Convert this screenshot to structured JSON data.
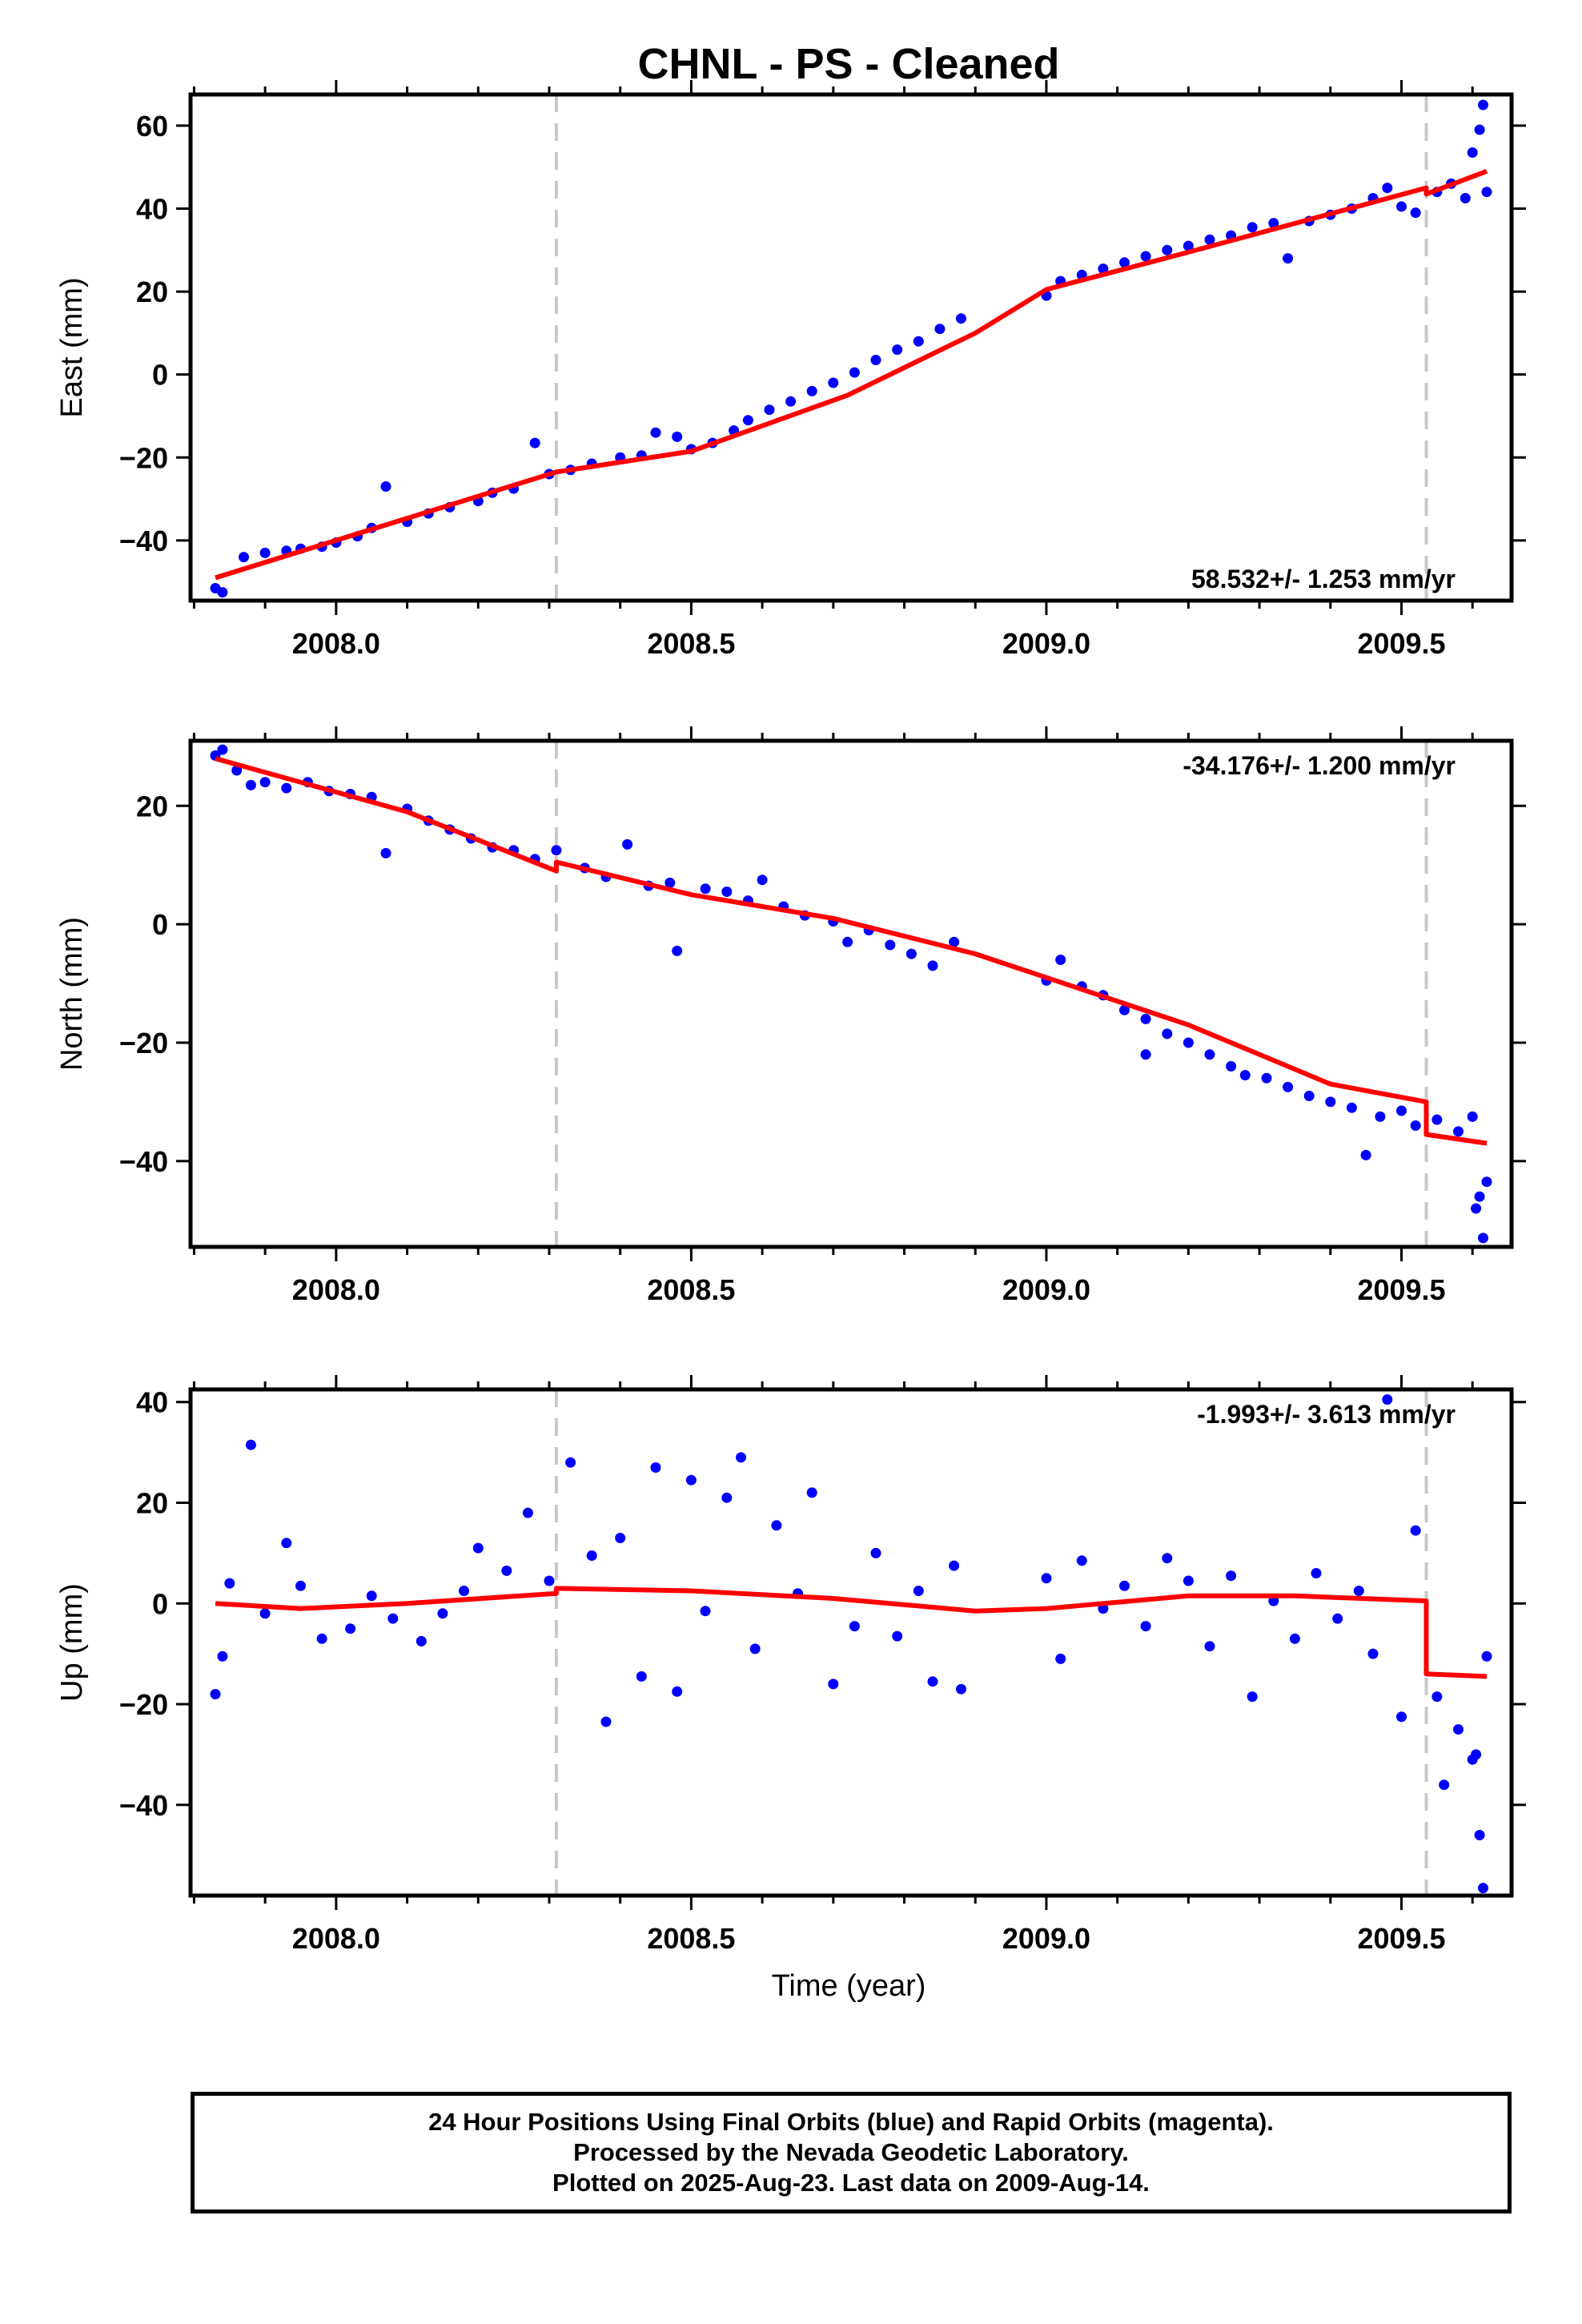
{
  "title": "CHNL  - PS - Cleaned",
  "x_axis_label": "Time (year)",
  "footer": {
    "lines": [
      "24 Hour Positions Using Final Orbits (blue) and Rapid Orbits (magenta).",
      "Processed by the Nevada Geodetic Laboratory.",
      "Plotted on 2025-Aug-23. Last data on 2009-Aug-14."
    ]
  },
  "colors": {
    "points": "#0000ff",
    "model": "#ff0000",
    "events": "#c8c8c8"
  },
  "chart_data": [
    {
      "type": "scatter",
      "ylabel": "East (mm)",
      "rate_label": "58.532+/- 1.253 mm/yr",
      "xlim": [
        2007.795,
        2009.655
      ],
      "ylim": [
        -54.5,
        67.5
      ],
      "x_ticks": [
        2008.0,
        2008.5,
        2009.0,
        2009.5
      ],
      "x_tick_labels": [
        "2008.0",
        "2008.5",
        "2009.0",
        "2009.5"
      ],
      "y_ticks": [
        -40,
        -20,
        0,
        20,
        40,
        60
      ],
      "y_tick_labels": [
        "−40",
        "−20",
        "0",
        "20",
        "40",
        "60"
      ],
      "event_lines": [
        2008.31,
        2009.535
      ],
      "model_line": [
        [
          2007.83,
          -49.0
        ],
        [
          2008.31,
          -23.5
        ],
        [
          2008.5,
          -18.5
        ],
        [
          2008.72,
          -5.0
        ],
        [
          2008.9,
          10.0
        ],
        [
          2009.0,
          20.5
        ],
        [
          2009.2,
          29.5
        ],
        [
          2009.535,
          45.0
        ],
        [
          2009.535,
          43.5
        ],
        [
          2009.62,
          49.0
        ]
      ],
      "series": [
        {
          "points": [
            [
              2007.83,
              -51.5
            ],
            [
              2007.84,
              -52.5
            ],
            [
              2007.87,
              -44.0
            ],
            [
              2007.9,
              -43.0
            ],
            [
              2007.93,
              -42.5
            ],
            [
              2007.95,
              -42.0
            ],
            [
              2007.98,
              -41.5
            ],
            [
              2008.0,
              -40.5
            ],
            [
              2008.03,
              -39.0
            ],
            [
              2008.05,
              -37.0
            ],
            [
              2008.07,
              -27.0
            ],
            [
              2008.1,
              -35.5
            ],
            [
              2008.13,
              -33.5
            ],
            [
              2008.16,
              -32.0
            ],
            [
              2008.2,
              -30.5
            ],
            [
              2008.22,
              -28.5
            ],
            [
              2008.25,
              -27.5
            ],
            [
              2008.28,
              -16.5
            ],
            [
              2008.3,
              -24.0
            ],
            [
              2008.33,
              -23.0
            ],
            [
              2008.36,
              -21.5
            ],
            [
              2008.4,
              -20.0
            ],
            [
              2008.43,
              -19.5
            ],
            [
              2008.45,
              -14.0
            ],
            [
              2008.48,
              -15.0
            ],
            [
              2008.5,
              -18.0
            ],
            [
              2008.53,
              -16.5
            ],
            [
              2008.56,
              -13.5
            ],
            [
              2008.58,
              -11.0
            ],
            [
              2008.61,
              -8.5
            ],
            [
              2008.64,
              -6.5
            ],
            [
              2008.67,
              -4.0
            ],
            [
              2008.7,
              -2.0
            ],
            [
              2008.73,
              0.5
            ],
            [
              2008.76,
              3.5
            ],
            [
              2008.79,
              6.0
            ],
            [
              2008.82,
              8.0
            ],
            [
              2008.85,
              11.0
            ],
            [
              2008.88,
              13.5
            ],
            [
              2009.0,
              19.0
            ],
            [
              2009.02,
              22.5
            ],
            [
              2009.05,
              24.0
            ],
            [
              2009.08,
              25.5
            ],
            [
              2009.11,
              27.0
            ],
            [
              2009.14,
              28.5
            ],
            [
              2009.17,
              30.0
            ],
            [
              2009.2,
              31.0
            ],
            [
              2009.23,
              32.5
            ],
            [
              2009.26,
              33.5
            ],
            [
              2009.29,
              35.5
            ],
            [
              2009.32,
              36.5
            ],
            [
              2009.34,
              28.0
            ],
            [
              2009.37,
              37.0
            ],
            [
              2009.4,
              38.5
            ],
            [
              2009.43,
              40.0
            ],
            [
              2009.46,
              42.5
            ],
            [
              2009.48,
              45.0
            ],
            [
              2009.5,
              40.5
            ],
            [
              2009.52,
              39.0
            ],
            [
              2009.55,
              44.0
            ],
            [
              2009.57,
              46.0
            ],
            [
              2009.59,
              42.5
            ],
            [
              2009.6,
              53.5
            ],
            [
              2009.61,
              59.0
            ],
            [
              2009.615,
              65.0
            ],
            [
              2009.62,
              44.0
            ]
          ]
        }
      ]
    },
    {
      "type": "scatter",
      "ylabel": "North (mm)",
      "rate_label": "-34.176+/- 1.200 mm/yr",
      "xlim": [
        2007.795,
        2009.655
      ],
      "ylim": [
        -54.5,
        31.0
      ],
      "x_ticks": [
        2008.0,
        2008.5,
        2009.0,
        2009.5
      ],
      "x_tick_labels": [
        "2008.0",
        "2008.5",
        "2009.0",
        "2009.5"
      ],
      "y_ticks": [
        -40,
        -20,
        0,
        20
      ],
      "y_tick_labels": [
        "−40",
        "−20",
        "0",
        "20"
      ],
      "event_lines": [
        2008.31,
        2009.535
      ],
      "model_line": [
        [
          2007.83,
          28.0
        ],
        [
          2008.1,
          19.0
        ],
        [
          2008.31,
          9.0
        ],
        [
          2008.31,
          10.5
        ],
        [
          2008.5,
          5.0
        ],
        [
          2008.7,
          1.0
        ],
        [
          2008.9,
          -5.0
        ],
        [
          2009.0,
          -9.0
        ],
        [
          2009.2,
          -17.0
        ],
        [
          2009.4,
          -27.0
        ],
        [
          2009.535,
          -30.0
        ],
        [
          2009.535,
          -35.5
        ],
        [
          2009.62,
          -37.0
        ]
      ],
      "series": [
        {
          "points": [
            [
              2007.83,
              28.5
            ],
            [
              2007.84,
              29.5
            ],
            [
              2007.86,
              26.0
            ],
            [
              2007.88,
              23.5
            ],
            [
              2007.9,
              24.0
            ],
            [
              2007.93,
              23.0
            ],
            [
              2007.96,
              24.0
            ],
            [
              2007.99,
              22.5
            ],
            [
              2008.02,
              22.0
            ],
            [
              2008.05,
              21.5
            ],
            [
              2008.07,
              12.0
            ],
            [
              2008.1,
              19.5
            ],
            [
              2008.13,
              17.5
            ],
            [
              2008.16,
              16.0
            ],
            [
              2008.19,
              14.5
            ],
            [
              2008.22,
              13.0
            ],
            [
              2008.25,
              12.5
            ],
            [
              2008.28,
              11.0
            ],
            [
              2008.31,
              12.5
            ],
            [
              2008.35,
              9.5
            ],
            [
              2008.38,
              8.0
            ],
            [
              2008.41,
              13.5
            ],
            [
              2008.44,
              6.5
            ],
            [
              2008.47,
              7.0
            ],
            [
              2008.48,
              -4.5
            ],
            [
              2008.52,
              6.0
            ],
            [
              2008.55,
              5.5
            ],
            [
              2008.58,
              4.0
            ],
            [
              2008.6,
              7.5
            ],
            [
              2008.63,
              3.0
            ],
            [
              2008.66,
              1.5
            ],
            [
              2008.7,
              0.5
            ],
            [
              2008.72,
              -3.0
            ],
            [
              2008.75,
              -1.0
            ],
            [
              2008.78,
              -3.5
            ],
            [
              2008.81,
              -5.0
            ],
            [
              2008.84,
              -7.0
            ],
            [
              2008.87,
              -3.0
            ],
            [
              2009.0,
              -9.5
            ],
            [
              2009.02,
              -6.0
            ],
            [
              2009.05,
              -10.5
            ],
            [
              2009.08,
              -12.0
            ],
            [
              2009.11,
              -14.5
            ],
            [
              2009.14,
              -16.0
            ],
            [
              2009.14,
              -22.0
            ],
            [
              2009.17,
              -18.5
            ],
            [
              2009.2,
              -20.0
            ],
            [
              2009.23,
              -22.0
            ],
            [
              2009.26,
              -24.0
            ],
            [
              2009.28,
              -25.5
            ],
            [
              2009.31,
              -26.0
            ],
            [
              2009.34,
              -27.5
            ],
            [
              2009.37,
              -29.0
            ],
            [
              2009.4,
              -30.0
            ],
            [
              2009.43,
              -31.0
            ],
            [
              2009.45,
              -39.0
            ],
            [
              2009.47,
              -32.5
            ],
            [
              2009.5,
              -31.5
            ],
            [
              2009.52,
              -34.0
            ],
            [
              2009.55,
              -33.0
            ],
            [
              2009.58,
              -35.0
            ],
            [
              2009.6,
              -32.5
            ],
            [
              2009.605,
              -48.0
            ],
            [
              2009.61,
              -46.0
            ],
            [
              2009.615,
              -53.0
            ],
            [
              2009.62,
              -43.5
            ]
          ]
        }
      ]
    },
    {
      "type": "scatter",
      "ylabel": "Up (mm)",
      "rate_label": "-1.993+/- 3.613 mm/yr",
      "xlim": [
        2007.795,
        2009.655
      ],
      "ylim": [
        -58.0,
        42.5
      ],
      "x_ticks": [
        2008.0,
        2008.5,
        2009.0,
        2009.5
      ],
      "x_tick_labels": [
        "2008.0",
        "2008.5",
        "2009.0",
        "2009.5"
      ],
      "y_ticks": [
        -40,
        -20,
        0,
        20,
        40
      ],
      "y_tick_labels": [
        "−40",
        "−20",
        "0",
        "20",
        "40"
      ],
      "event_lines": [
        2008.31,
        2009.535
      ],
      "model_line": [
        [
          2007.83,
          0.0
        ],
        [
          2007.95,
          -1.0
        ],
        [
          2008.1,
          0.0
        ],
        [
          2008.31,
          2.0
        ],
        [
          2008.31,
          3.0
        ],
        [
          2008.5,
          2.5
        ],
        [
          2008.7,
          1.0
        ],
        [
          2008.9,
          -1.5
        ],
        [
          2009.0,
          -1.0
        ],
        [
          2009.2,
          1.5
        ],
        [
          2009.35,
          1.5
        ],
        [
          2009.535,
          0.5
        ],
        [
          2009.535,
          -14.0
        ],
        [
          2009.62,
          -14.5
        ]
      ],
      "series": [
        {
          "points": [
            [
              2007.83,
              -18.0
            ],
            [
              2007.84,
              -10.5
            ],
            [
              2007.85,
              4.0
            ],
            [
              2007.88,
              31.5
            ],
            [
              2007.9,
              -2.0
            ],
            [
              2007.93,
              12.0
            ],
            [
              2007.95,
              3.5
            ],
            [
              2007.98,
              -7.0
            ],
            [
              2008.02,
              -5.0
            ],
            [
              2008.05,
              1.5
            ],
            [
              2008.08,
              -3.0
            ],
            [
              2008.12,
              -7.5
            ],
            [
              2008.15,
              -2.0
            ],
            [
              2008.18,
              2.5
            ],
            [
              2008.2,
              11.0
            ],
            [
              2008.24,
              6.5
            ],
            [
              2008.27,
              18.0
            ],
            [
              2008.3,
              4.5
            ],
            [
              2008.33,
              28.0
            ],
            [
              2008.36,
              9.5
            ],
            [
              2008.38,
              -23.5
            ],
            [
              2008.4,
              13.0
            ],
            [
              2008.43,
              -14.5
            ],
            [
              2008.45,
              27.0
            ],
            [
              2008.48,
              -17.5
            ],
            [
              2008.5,
              24.5
            ],
            [
              2008.52,
              -1.5
            ],
            [
              2008.55,
              21.0
            ],
            [
              2008.57,
              29.0
            ],
            [
              2008.59,
              -9.0
            ],
            [
              2008.62,
              15.5
            ],
            [
              2008.65,
              2.0
            ],
            [
              2008.67,
              22.0
            ],
            [
              2008.7,
              -16.0
            ],
            [
              2008.73,
              -4.5
            ],
            [
              2008.76,
              10.0
            ],
            [
              2008.79,
              -6.5
            ],
            [
              2008.82,
              2.5
            ],
            [
              2008.84,
              -15.5
            ],
            [
              2008.87,
              7.5
            ],
            [
              2008.88,
              -17.0
            ],
            [
              2009.0,
              5.0
            ],
            [
              2009.02,
              -11.0
            ],
            [
              2009.05,
              8.5
            ],
            [
              2009.08,
              -1.0
            ],
            [
              2009.11,
              3.5
            ],
            [
              2009.14,
              -4.5
            ],
            [
              2009.17,
              9.0
            ],
            [
              2009.2,
              4.5
            ],
            [
              2009.23,
              -8.5
            ],
            [
              2009.26,
              5.5
            ],
            [
              2009.29,
              -18.5
            ],
            [
              2009.32,
              0.5
            ],
            [
              2009.35,
              -7.0
            ],
            [
              2009.38,
              6.0
            ],
            [
              2009.41,
              -3.0
            ],
            [
              2009.44,
              2.5
            ],
            [
              2009.46,
              -10.0
            ],
            [
              2009.48,
              40.5
            ],
            [
              2009.5,
              -22.5
            ],
            [
              2009.52,
              14.5
            ],
            [
              2009.55,
              -18.5
            ],
            [
              2009.56,
              -36.0
            ],
            [
              2009.58,
              -25.0
            ],
            [
              2009.6,
              -31.0
            ],
            [
              2009.605,
              -30.0
            ],
            [
              2009.61,
              -46.0
            ],
            [
              2009.615,
              -56.5
            ],
            [
              2009.62,
              -10.5
            ]
          ]
        }
      ]
    }
  ]
}
